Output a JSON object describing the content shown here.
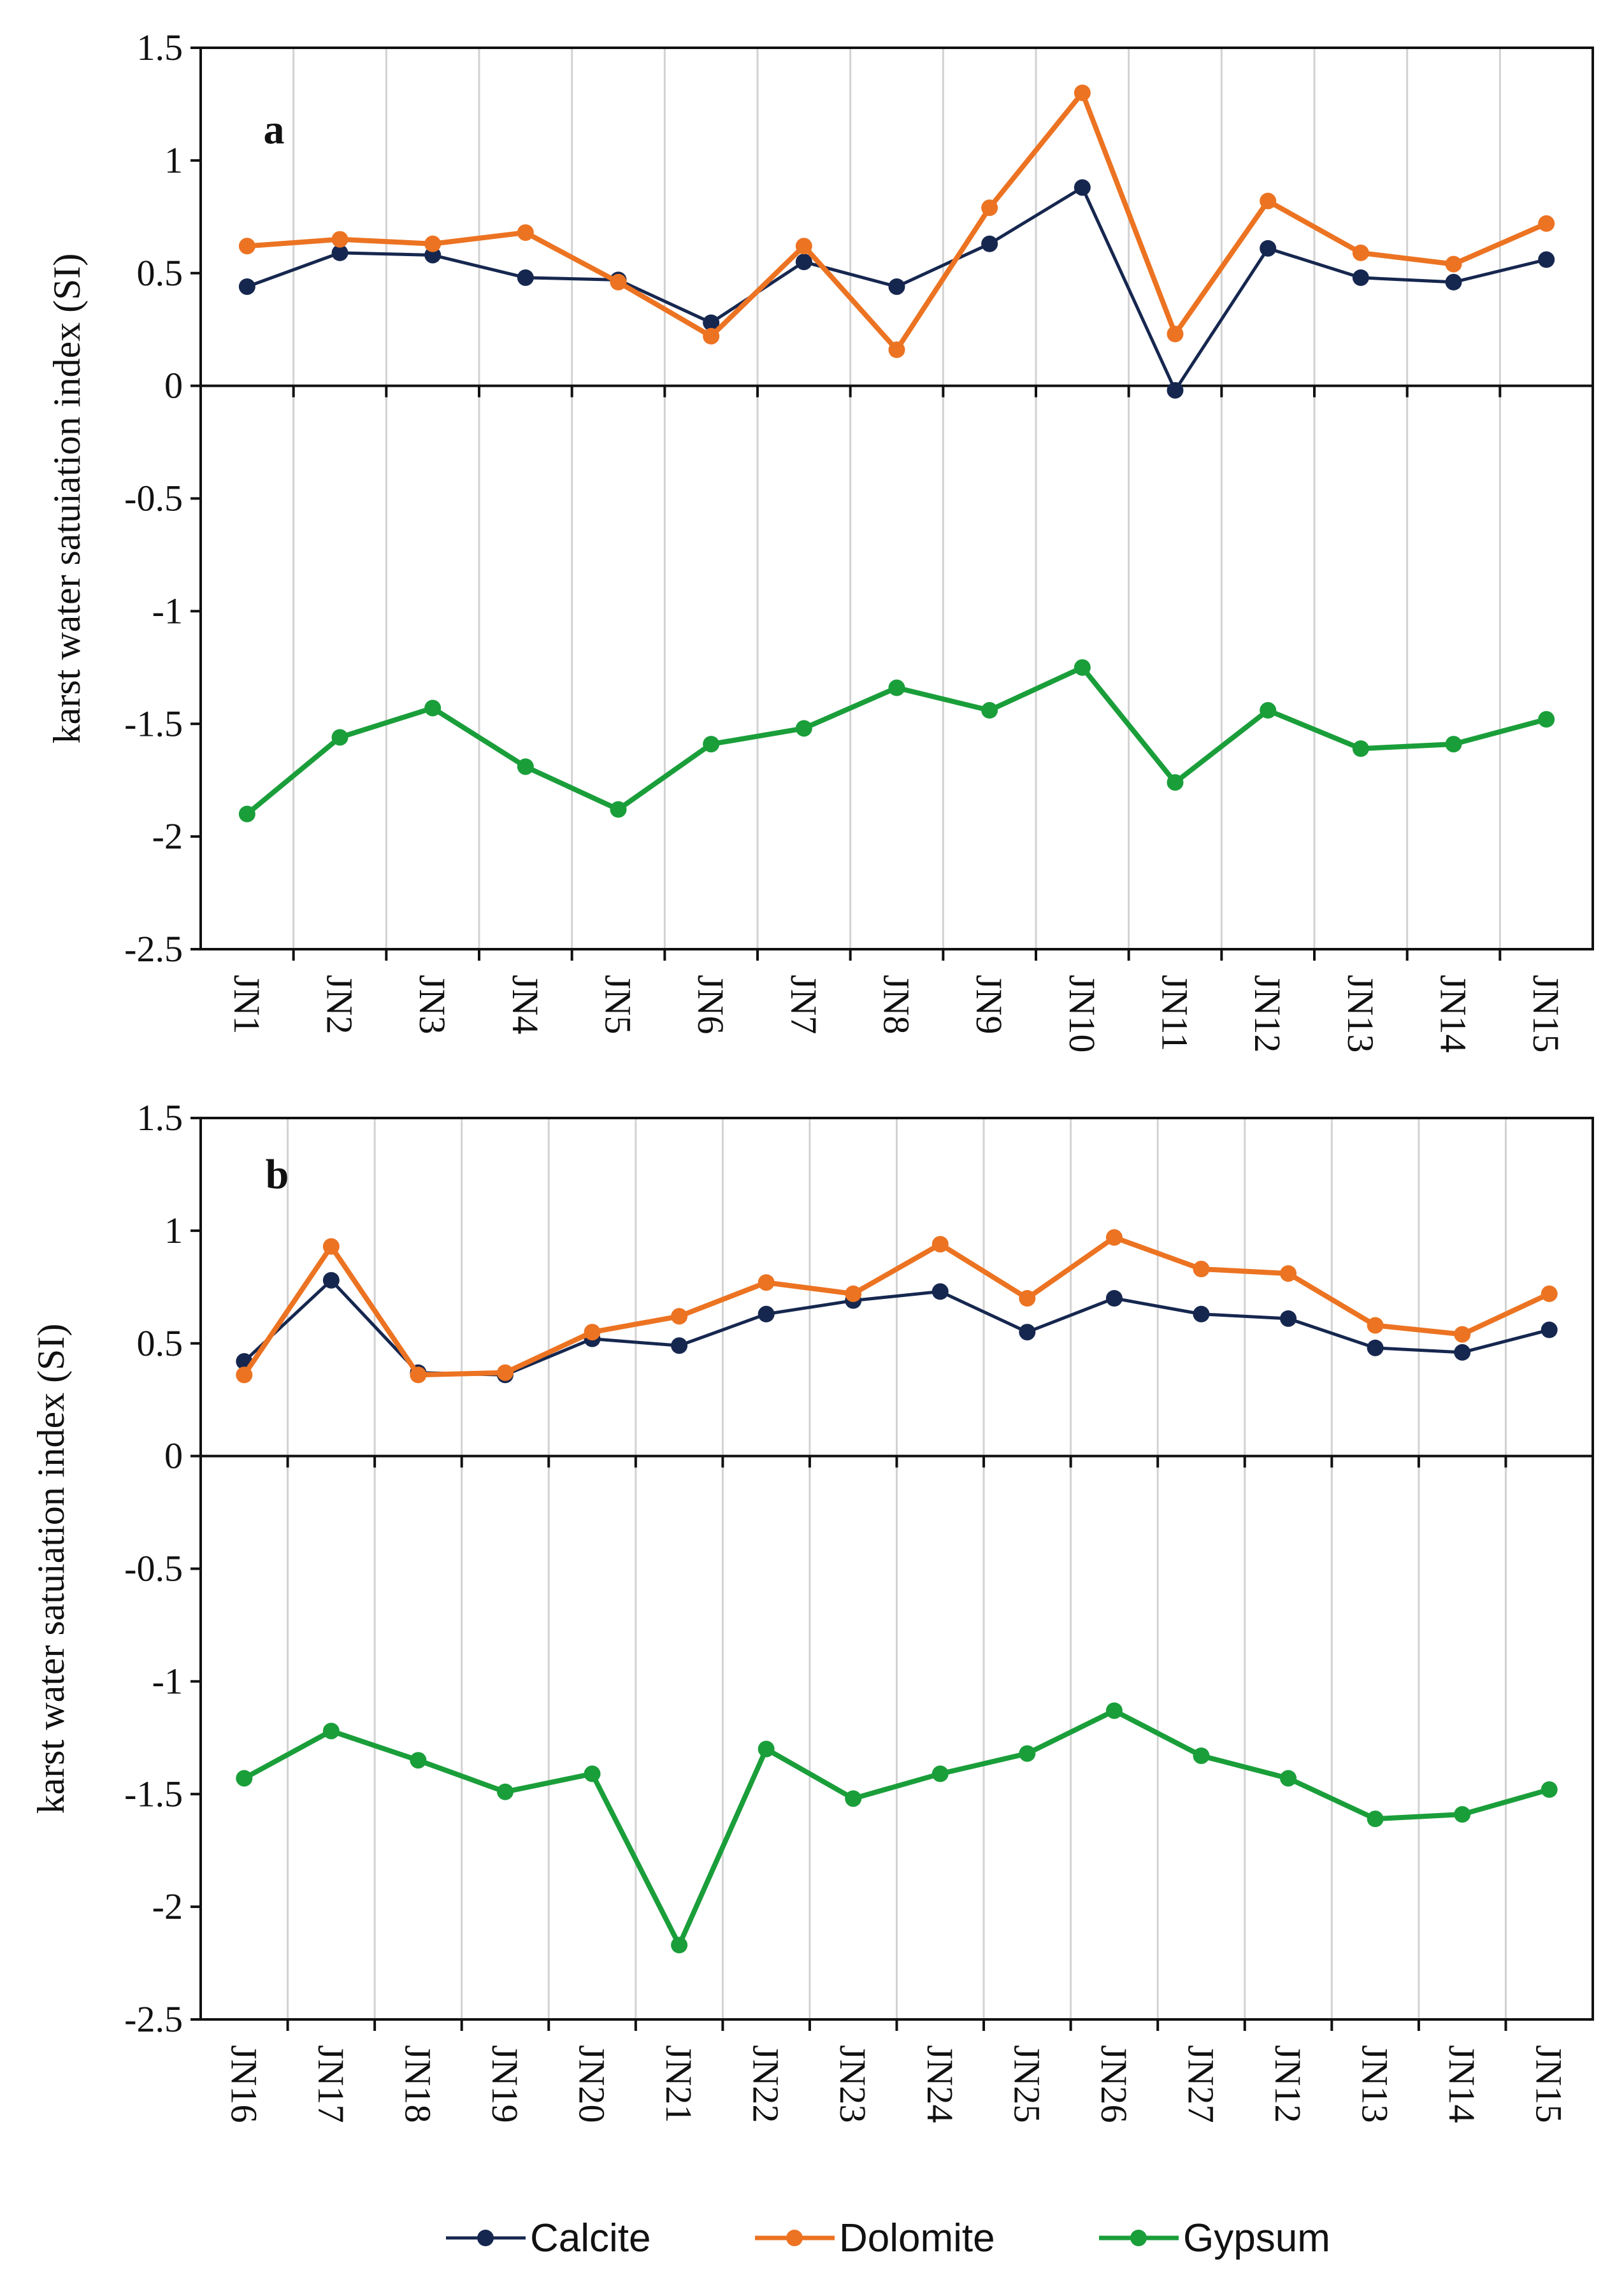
{
  "colors": {
    "Calcite": "#16274f",
    "Dolomite": "#ec7322",
    "Gypsum": "#1a9e3a"
  },
  "legend": [
    "Calcite",
    "Dolomite",
    "Gypsum"
  ],
  "chart_data": [
    {
      "type": "line",
      "panel_label": "a",
      "ylabel": "karst water satuiation index (SI)",
      "ylim": [
        -2.5,
        1.5
      ],
      "yticks": [
        1.5,
        1,
        0.5,
        0,
        -0.5,
        -1,
        -1.5,
        -2,
        -2.5
      ],
      "ytick_labels": [
        "1.5",
        "1",
        "0.5",
        "0",
        "-0.5",
        "-1",
        "-1.5",
        "-2",
        "-2.5"
      ],
      "categories": [
        "JN1",
        "JN2",
        "JN3",
        "JN4",
        "JN5",
        "JN6",
        "JN7",
        "JN8",
        "JN9",
        "JN10",
        "JN11",
        "JN12",
        "JN13",
        "JN14",
        "JN15"
      ],
      "series": [
        {
          "name": "Calcite",
          "values": [
            0.44,
            0.59,
            0.58,
            0.48,
            0.47,
            0.28,
            0.55,
            0.44,
            0.63,
            0.88,
            -0.02,
            0.61,
            0.48,
            0.46,
            0.56
          ]
        },
        {
          "name": "Dolomite",
          "values": [
            0.62,
            0.65,
            0.63,
            0.68,
            0.46,
            0.22,
            0.62,
            0.16,
            0.79,
            1.3,
            0.23,
            0.82,
            0.59,
            0.54,
            0.72
          ]
        },
        {
          "name": "Gypsum",
          "values": [
            -1.9,
            -1.56,
            -1.43,
            -1.69,
            -1.88,
            -1.59,
            -1.52,
            -1.34,
            -1.44,
            -1.25,
            -1.76,
            -1.44,
            -1.61,
            -1.59,
            -1.48
          ]
        }
      ]
    },
    {
      "type": "line",
      "panel_label": "b",
      "ylabel": "karst water satuiation index (SI)",
      "ylim": [
        -2.5,
        1.5
      ],
      "yticks": [
        1.5,
        1,
        0.5,
        0,
        -0.5,
        -1,
        -1.5,
        -2,
        -2.5
      ],
      "ytick_labels": [
        "1.5",
        "1",
        "0.5",
        "0",
        "-0.5",
        "-1",
        "-1.5",
        "-2",
        "-2.5"
      ],
      "categories": [
        "JN16",
        "JN17",
        "JN18",
        "JN19",
        "JN20",
        "JN21",
        "JN22",
        "JN23",
        "JN24",
        "JN25",
        "JN26",
        "JN27",
        "JN12",
        "JN13",
        "JN14",
        "JN15"
      ],
      "series": [
        {
          "name": "Calcite",
          "values": [
            0.42,
            0.78,
            0.37,
            0.36,
            0.52,
            0.49,
            0.63,
            0.69,
            0.73,
            0.55,
            0.7,
            0.63,
            0.61,
            0.48,
            0.46,
            0.56
          ]
        },
        {
          "name": "Dolomite",
          "values": [
            0.36,
            0.93,
            0.36,
            0.37,
            0.55,
            0.62,
            0.77,
            0.72,
            0.94,
            0.7,
            0.97,
            0.83,
            0.81,
            0.58,
            0.54,
            0.72
          ]
        },
        {
          "name": "Gypsum",
          "values": [
            -1.43,
            -1.22,
            -1.35,
            -1.49,
            -1.41,
            -2.17,
            -1.3,
            -1.52,
            -1.41,
            -1.32,
            -1.13,
            -1.33,
            -1.43,
            -1.61,
            -1.59,
            -1.48
          ]
        }
      ]
    }
  ]
}
